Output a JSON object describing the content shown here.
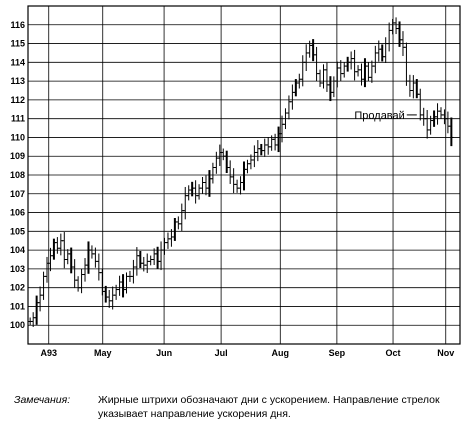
{
  "chart_data": {
    "type": "bar",
    "style": "OHLC daily bars, black ink on white, full grid",
    "ylim": [
      99,
      117
    ],
    "yticks": [
      "100",
      "101",
      "102",
      "103",
      "104",
      "105",
      "106",
      "107",
      "108",
      "109",
      "110",
      "111",
      "112",
      "113",
      "114",
      "115",
      "116"
    ],
    "xlim": [
      0,
      1
    ],
    "xticks": [
      {
        "label": "A93",
        "pos": 0.048
      },
      {
        "label": "May",
        "pos": 0.173
      },
      {
        "label": "Jun",
        "pos": 0.315
      },
      {
        "label": "Jul",
        "pos": 0.447
      },
      {
        "label": "Aug",
        "pos": 0.584
      },
      {
        "label": "Sep",
        "pos": 0.715
      },
      {
        "label": "Oct",
        "pos": 0.845
      },
      {
        "label": "Nov",
        "pos": 0.967
      }
    ],
    "grid": true,
    "annotation": {
      "text": "Продавай",
      "x": 0.9,
      "y": 111.2
    },
    "series": [
      {
        "values": [
          [
            0.005,
            100.2
          ],
          [
            0.012,
            100.4
          ],
          [
            0.02,
            101.2
          ],
          [
            0.028,
            101.6
          ],
          [
            0.036,
            102.6
          ],
          [
            0.044,
            103.3
          ],
          [
            0.052,
            103.7
          ],
          [
            0.06,
            104.4
          ],
          [
            0.068,
            104.1
          ],
          [
            0.076,
            104.5
          ],
          [
            0.084,
            103.5
          ],
          [
            0.092,
            103.8
          ],
          [
            0.1,
            103.1
          ],
          [
            0.108,
            102.4
          ],
          [
            0.116,
            102.0
          ],
          [
            0.124,
            102.7
          ],
          [
            0.132,
            103.2
          ],
          [
            0.14,
            104.0
          ],
          [
            0.148,
            103.8
          ],
          [
            0.156,
            103.4
          ],
          [
            0.164,
            102.8
          ],
          [
            0.172,
            101.8
          ],
          [
            0.18,
            101.5
          ],
          [
            0.188,
            101.3
          ],
          [
            0.196,
            101.6
          ],
          [
            0.204,
            101.9
          ],
          [
            0.212,
            102.3
          ],
          [
            0.22,
            101.9
          ],
          [
            0.228,
            102.6
          ],
          [
            0.236,
            102.6
          ],
          [
            0.244,
            103.1
          ],
          [
            0.252,
            103.7
          ],
          [
            0.26,
            103.3
          ],
          [
            0.268,
            103.2
          ],
          [
            0.276,
            103.4
          ],
          [
            0.284,
            103.5
          ],
          [
            0.292,
            103.8
          ],
          [
            0.3,
            103.4
          ],
          [
            0.308,
            104.0
          ],
          [
            0.316,
            104.4
          ],
          [
            0.324,
            104.6
          ],
          [
            0.332,
            104.7
          ],
          [
            0.34,
            105.5
          ],
          [
            0.348,
            105.4
          ],
          [
            0.356,
            106.1
          ],
          [
            0.364,
            106.9
          ],
          [
            0.372,
            107.2
          ],
          [
            0.38,
            107.3
          ],
          [
            0.388,
            106.9
          ],
          [
            0.396,
            107.3
          ],
          [
            0.404,
            107.6
          ],
          [
            0.412,
            107.3
          ],
          [
            0.42,
            107.8
          ],
          [
            0.428,
            108.4
          ],
          [
            0.436,
            108.9
          ],
          [
            0.444,
            109.2
          ],
          [
            0.452,
            109.0
          ],
          [
            0.46,
            108.4
          ],
          [
            0.468,
            107.9
          ],
          [
            0.476,
            107.5
          ],
          [
            0.484,
            107.3
          ],
          [
            0.492,
            107.6
          ],
          [
            0.5,
            108.3
          ],
          [
            0.508,
            108.6
          ],
          [
            0.516,
            108.8
          ],
          [
            0.524,
            109.2
          ],
          [
            0.532,
            109.4
          ],
          [
            0.54,
            109.3
          ],
          [
            0.548,
            109.6
          ],
          [
            0.556,
            109.5
          ],
          [
            0.564,
            109.9
          ],
          [
            0.572,
            109.6
          ],
          [
            0.58,
            110.2
          ],
          [
            0.588,
            110.7
          ],
          [
            0.596,
            111.3
          ],
          [
            0.604,
            111.9
          ],
          [
            0.612,
            112.4
          ],
          [
            0.62,
            112.9
          ],
          [
            0.628,
            113.1
          ],
          [
            0.636,
            114.0
          ],
          [
            0.644,
            114.5
          ],
          [
            0.652,
            114.9
          ],
          [
            0.66,
            114.4
          ],
          [
            0.668,
            113.4
          ],
          [
            0.676,
            112.9
          ],
          [
            0.684,
            113.6
          ],
          [
            0.692,
            112.8
          ],
          [
            0.7,
            112.4
          ],
          [
            0.708,
            113.0
          ],
          [
            0.716,
            113.7
          ],
          [
            0.724,
            113.4
          ],
          [
            0.732,
            113.8
          ],
          [
            0.74,
            114.0
          ],
          [
            0.748,
            114.2
          ],
          [
            0.756,
            113.5
          ],
          [
            0.764,
            113.6
          ],
          [
            0.772,
            113.1
          ],
          [
            0.78,
            113.8
          ],
          [
            0.788,
            113.2
          ],
          [
            0.796,
            113.8
          ],
          [
            0.804,
            114.5
          ],
          [
            0.812,
            114.7
          ],
          [
            0.82,
            114.3
          ],
          [
            0.828,
            115.0
          ],
          [
            0.836,
            115.7
          ],
          [
            0.844,
            116.1
          ],
          [
            0.852,
            115.8
          ],
          [
            0.86,
            115.2
          ],
          [
            0.868,
            114.8
          ],
          [
            0.876,
            113.0
          ],
          [
            0.884,
            112.5
          ],
          [
            0.892,
            112.9
          ],
          [
            0.9,
            112.3
          ],
          [
            0.908,
            111.2
          ],
          [
            0.916,
            111.0
          ],
          [
            0.924,
            110.4
          ],
          [
            0.932,
            110.9
          ],
          [
            0.94,
            111.1
          ],
          [
            0.948,
            111.4
          ],
          [
            0.956,
            111.2
          ],
          [
            0.964,
            111.0
          ],
          [
            0.972,
            110.6
          ],
          [
            0.98,
            110.0
          ]
        ]
      }
    ]
  },
  "note": {
    "label": "Замечания:",
    "text": "Жирные штрихи обозначают дни с ускорением. Направление стрелок указывает направление ускорения дня."
  }
}
